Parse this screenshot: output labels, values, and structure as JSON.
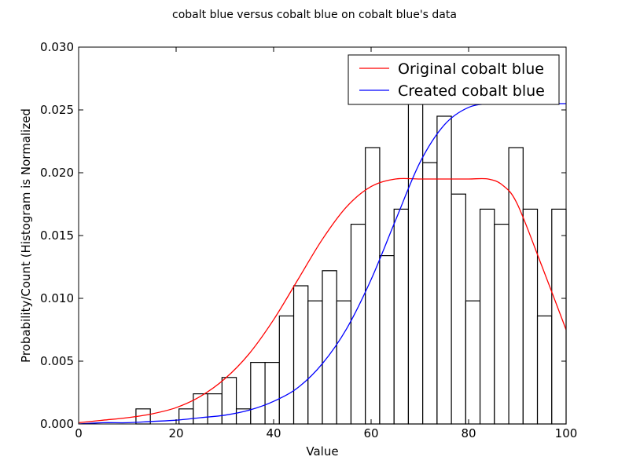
{
  "chart_data": {
    "type": "bar",
    "title": "cobalt blue versus cobalt blue on cobalt blue's data",
    "xlabel": "Value",
    "ylabel": "Probability/Count (Histogram is Normalized",
    "xlim": [
      0,
      100
    ],
    "ylim": [
      0,
      0.03
    ],
    "x_ticks": [
      0,
      20,
      40,
      60,
      80,
      100
    ],
    "x_tick_labels": [
      "0",
      "20",
      "40",
      "60",
      "80",
      "100"
    ],
    "y_ticks": [
      0,
      0.005,
      0.01,
      0.015,
      0.02,
      0.025,
      0.03
    ],
    "y_tick_labels": [
      "0.000",
      "0.005",
      "0.010",
      "0.015",
      "0.020",
      "0.025",
      "0.030"
    ],
    "grid": false,
    "legend_position": "top-right",
    "histogram": {
      "edge_color": "#000000",
      "fill_color": "#ffffff",
      "bin_edges": [
        0,
        2.94,
        5.88,
        8.82,
        11.76,
        14.71,
        17.65,
        20.59,
        23.53,
        26.47,
        29.41,
        32.35,
        35.29,
        38.24,
        41.18,
        44.12,
        47.06,
        50.0,
        52.94,
        55.88,
        58.82,
        61.76,
        64.71,
        67.65,
        70.59,
        73.53,
        76.47,
        79.41,
        82.35,
        85.29,
        88.24,
        91.18,
        94.12,
        97.06,
        100
      ],
      "values": [
        0,
        0,
        0,
        0,
        0.0012,
        0,
        0,
        0.0012,
        0.0024,
        0.0024,
        0.0037,
        0.0012,
        0.0049,
        0.0049,
        0.0086,
        0.011,
        0.0098,
        0.0122,
        0.0098,
        0.0159,
        0.022,
        0.0134,
        0.0171,
        0.0269,
        0.0208,
        0.0245,
        0.0183,
        0.0098,
        0.0171,
        0.0159,
        0.022,
        0.0171,
        0.0086,
        0.0171
      ]
    },
    "series": [
      {
        "name": "Original cobalt blue",
        "color": "#ff0000",
        "x": [
          0,
          5,
          10,
          15,
          20,
          25,
          30,
          35,
          40,
          45,
          50,
          55,
          60,
          65,
          70,
          75,
          80,
          84,
          87,
          90,
          95,
          100
        ],
        "y": [
          0.0001,
          0.0003,
          0.0005,
          0.0008,
          0.0013,
          0.0022,
          0.0036,
          0.0056,
          0.0083,
          0.0115,
          0.0147,
          0.0173,
          0.0189,
          0.0195,
          0.0195,
          0.0195,
          0.0195,
          0.0195,
          0.019,
          0.0175,
          0.0126,
          0.0075
        ]
      },
      {
        "name": "Created cobalt blue",
        "color": "#0000ff",
        "x": [
          0,
          5,
          10,
          15,
          20,
          25,
          30,
          35,
          40,
          45,
          50,
          55,
          60,
          65,
          70,
          75,
          80,
          85,
          90,
          100
        ],
        "y": [
          0,
          0.0001,
          0.0001,
          0.0002,
          0.0003,
          0.0005,
          0.0007,
          0.0011,
          0.0018,
          0.0029,
          0.0048,
          0.0076,
          0.0115,
          0.0162,
          0.0208,
          0.0238,
          0.0252,
          0.0255,
          0.0255,
          0.0255
        ]
      }
    ]
  }
}
